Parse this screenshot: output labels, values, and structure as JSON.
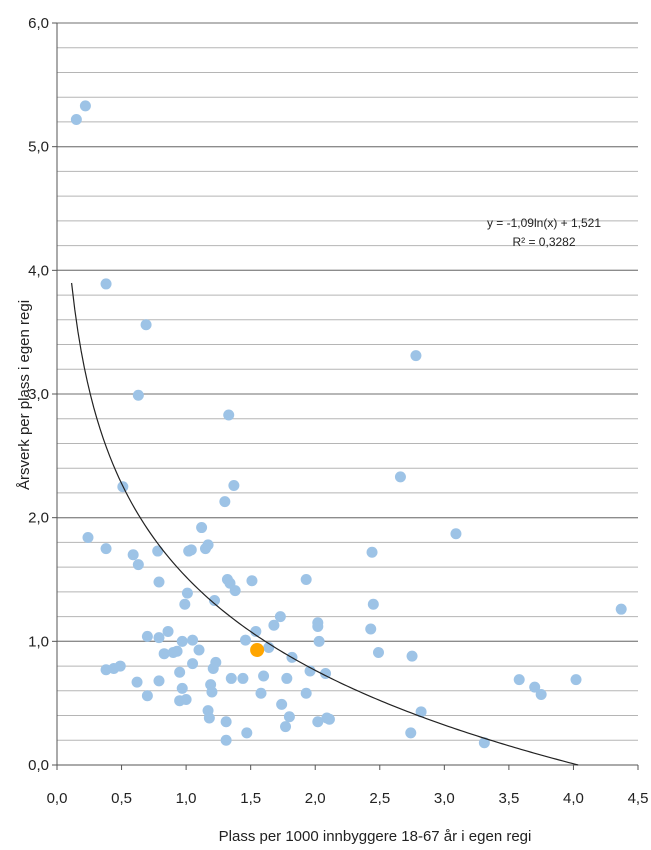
{
  "chart_data": {
    "type": "scatter",
    "xlabel": "Plass per 1000 innbyggere 18-67 år i egen regi",
    "ylabel": "Årsverk per plass i egen regi",
    "xlim": [
      0.0,
      4.5
    ],
    "ylim": [
      0.0,
      6.0
    ],
    "x_ticks": [
      "0,0",
      "0,5",
      "1,0",
      "1,5",
      "2,0",
      "2,5",
      "3,0",
      "3,5",
      "4,0",
      "4,5"
    ],
    "y_ticks": [
      "0,0",
      "1,0",
      "2,0",
      "3,0",
      "4,0",
      "5,0",
      "6,0"
    ],
    "minor_gridlines": true,
    "trendline": {
      "type": "logarithmic",
      "a": -1.09,
      "b": 1.521,
      "equation_text": "y = -1,09ln(x) + 1,521",
      "r2_text": "R² = 0,3282"
    },
    "colors": {
      "points": "#9DC3E6",
      "highlight": "#FFA500",
      "grid": "#A6A6A6",
      "trend": "#222222"
    },
    "points": [
      [
        0.15,
        5.22
      ],
      [
        0.22,
        5.33
      ],
      [
        0.38,
        3.89
      ],
      [
        0.69,
        3.56
      ],
      [
        0.63,
        2.99
      ],
      [
        0.24,
        1.84
      ],
      [
        0.38,
        1.75
      ],
      [
        0.51,
        2.25
      ],
      [
        0.59,
        1.7
      ],
      [
        0.63,
        1.62
      ],
      [
        0.78,
        1.73
      ],
      [
        0.79,
        1.48
      ],
      [
        0.38,
        0.77
      ],
      [
        0.44,
        0.78
      ],
      [
        0.49,
        0.8
      ],
      [
        0.62,
        0.67
      ],
      [
        0.7,
        1.04
      ],
      [
        0.7,
        0.56
      ],
      [
        0.79,
        0.68
      ],
      [
        0.79,
        1.03
      ],
      [
        0.83,
        0.9
      ],
      [
        0.86,
        1.08
      ],
      [
        0.9,
        0.91
      ],
      [
        0.93,
        0.92
      ],
      [
        0.95,
        0.52
      ],
      [
        0.95,
        0.75
      ],
      [
        0.97,
        0.62
      ],
      [
        0.97,
        1.0
      ],
      [
        0.99,
        1.3
      ],
      [
        1.0,
        0.53
      ],
      [
        1.01,
        1.39
      ],
      [
        1.02,
        1.73
      ],
      [
        1.04,
        1.74
      ],
      [
        1.05,
        1.01
      ],
      [
        1.05,
        0.82
      ],
      [
        1.1,
        0.93
      ],
      [
        1.12,
        1.92
      ],
      [
        1.15,
        1.75
      ],
      [
        1.17,
        1.78
      ],
      [
        1.17,
        0.44
      ],
      [
        1.18,
        0.38
      ],
      [
        1.19,
        0.65
      ],
      [
        1.2,
        0.59
      ],
      [
        1.21,
        0.78
      ],
      [
        1.22,
        1.33
      ],
      [
        1.23,
        0.83
      ],
      [
        1.3,
        2.13
      ],
      [
        1.31,
        0.35
      ],
      [
        1.31,
        0.2
      ],
      [
        1.32,
        1.5
      ],
      [
        1.33,
        2.83
      ],
      [
        1.34,
        1.47
      ],
      [
        1.35,
        0.7
      ],
      [
        1.37,
        2.26
      ],
      [
        1.38,
        1.41
      ],
      [
        1.44,
        0.7
      ],
      [
        1.46,
        1.01
      ],
      [
        1.47,
        0.26
      ],
      [
        1.51,
        1.49
      ],
      [
        1.54,
        1.08
      ],
      [
        1.58,
        0.58
      ],
      [
        1.6,
        0.72
      ],
      [
        1.64,
        0.95
      ],
      [
        1.68,
        1.13
      ],
      [
        1.73,
        1.2
      ],
      [
        1.74,
        0.49
      ],
      [
        1.77,
        0.31
      ],
      [
        1.78,
        0.7
      ],
      [
        1.8,
        0.39
      ],
      [
        1.82,
        0.87
      ],
      [
        1.93,
        1.5
      ],
      [
        1.93,
        0.58
      ],
      [
        1.96,
        0.76
      ],
      [
        2.02,
        1.15
      ],
      [
        2.02,
        1.12
      ],
      [
        2.02,
        0.35
      ],
      [
        2.03,
        1.0
      ],
      [
        2.08,
        0.74
      ],
      [
        2.09,
        0.38
      ],
      [
        2.11,
        0.37
      ],
      [
        2.43,
        1.1
      ],
      [
        2.44,
        1.72
      ],
      [
        2.45,
        1.3
      ],
      [
        2.49,
        0.91
      ],
      [
        2.66,
        2.33
      ],
      [
        2.74,
        0.26
      ],
      [
        2.75,
        0.88
      ],
      [
        2.78,
        3.31
      ],
      [
        2.82,
        0.43
      ],
      [
        3.09,
        1.87
      ],
      [
        3.31,
        0.18
      ],
      [
        3.58,
        0.69
      ],
      [
        3.7,
        0.63
      ],
      [
        3.75,
        0.57
      ],
      [
        4.02,
        0.69
      ],
      [
        4.37,
        1.26
      ]
    ],
    "highlight_points": [
      [
        1.55,
        0.93
      ]
    ]
  }
}
